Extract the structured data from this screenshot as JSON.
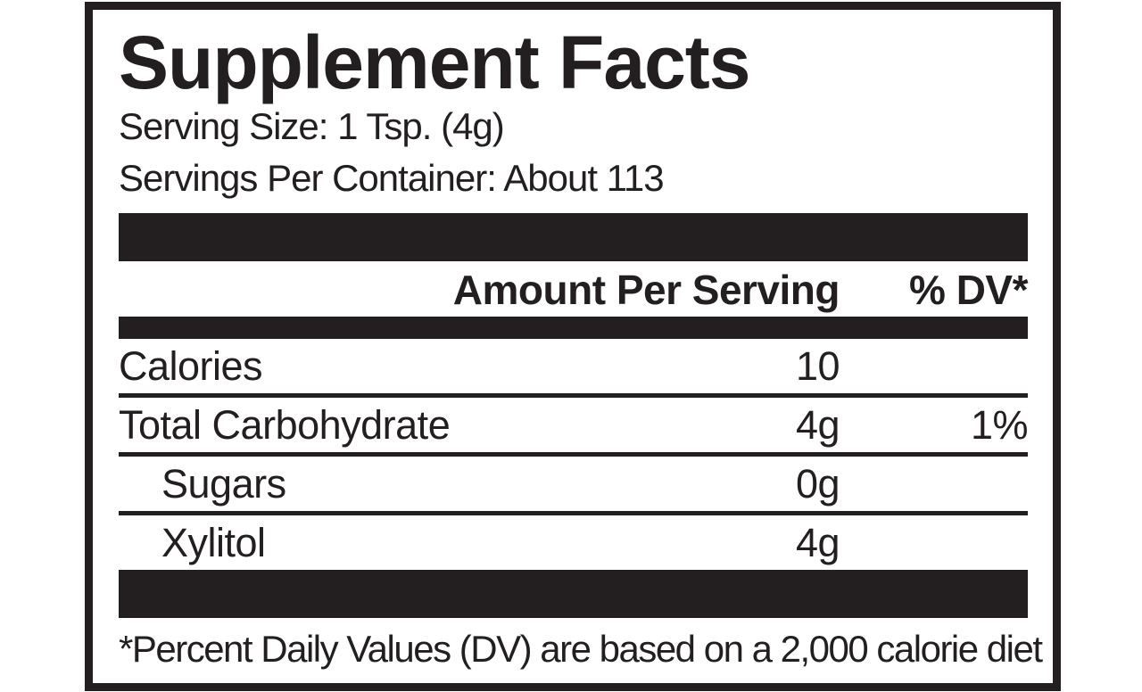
{
  "label": {
    "title": "Supplement Facts",
    "serving_size_line": "Serving Size: 1 Tsp. (4g)",
    "servings_per_container_line": "Servings Per Container: About 113",
    "header": {
      "amount_label": "Amount Per Serving",
      "dv_label": "% DV*"
    },
    "rows": [
      {
        "name": "Calories",
        "amount": "10",
        "dv": ""
      },
      {
        "name": "Total Carbohydrate",
        "amount": "4g",
        "dv": "1%"
      },
      {
        "name": "Sugars",
        "amount": "0g",
        "dv": ""
      },
      {
        "name": "Xylitol",
        "amount": "4g",
        "dv": ""
      }
    ],
    "footnote": "*Percent Daily Values (DV) are based on a 2,000 calorie diet",
    "colors": {
      "ink": "#231f20",
      "background": "#ffffff"
    }
  }
}
